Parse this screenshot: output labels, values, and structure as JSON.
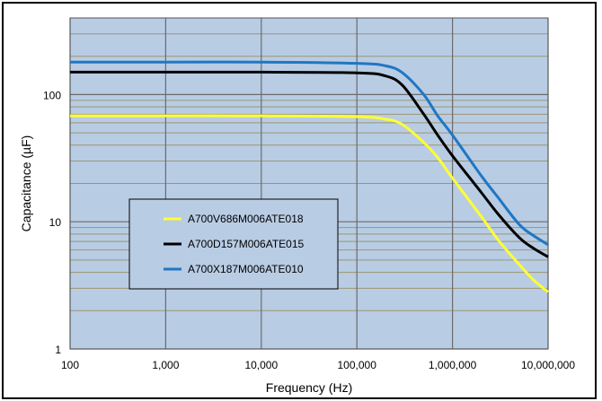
{
  "chart_data": {
    "type": "line",
    "title": "",
    "xlabel": "Frequency (Hz)",
    "ylabel": "Capacitance  (µF)",
    "x_scale": "log",
    "y_scale": "log",
    "xlim": [
      100,
      10000000
    ],
    "ylim": [
      1,
      400
    ],
    "x_ticks": [
      "100",
      "1,000",
      "10,000",
      "100,000",
      "1,000,000",
      "10,000,000"
    ],
    "y_ticks": [
      "1",
      "10",
      "100"
    ],
    "grid": true,
    "legend_position": "lower-left",
    "background_color": "#b8cce4",
    "series": [
      {
        "name": "A700V686M006ATE018",
        "color": "#ffff33",
        "x": [
          100,
          1000,
          10000,
          100000,
          200000,
          300000,
          500000,
          700000,
          1000000,
          2000000,
          3000000,
          5000000,
          7000000,
          10000000
        ],
        "values": [
          68,
          68,
          68,
          67,
          64,
          58,
          42,
          32,
          22,
          11,
          7.2,
          4.6,
          3.5,
          2.8
        ]
      },
      {
        "name": "A700D157M006ATE015",
        "color": "#000000",
        "x": [
          100,
          1000,
          10000,
          100000,
          200000,
          300000,
          500000,
          700000,
          1000000,
          2000000,
          3000000,
          5000000,
          7000000,
          10000000
        ],
        "values": [
          150,
          150,
          150,
          148,
          140,
          118,
          70,
          48,
          33,
          17,
          11.5,
          7.5,
          6.2,
          5.3
        ]
      },
      {
        "name": "A700X187M006ATE010",
        "color": "#1f77c4",
        "x": [
          100,
          1000,
          10000,
          100000,
          200000,
          300000,
          500000,
          700000,
          1000000,
          2000000,
          3000000,
          5000000,
          7000000,
          10000000
        ],
        "values": [
          180,
          180,
          180,
          176,
          168,
          148,
          100,
          68,
          48,
          23,
          15.5,
          9.5,
          7.8,
          6.6
        ]
      }
    ]
  }
}
